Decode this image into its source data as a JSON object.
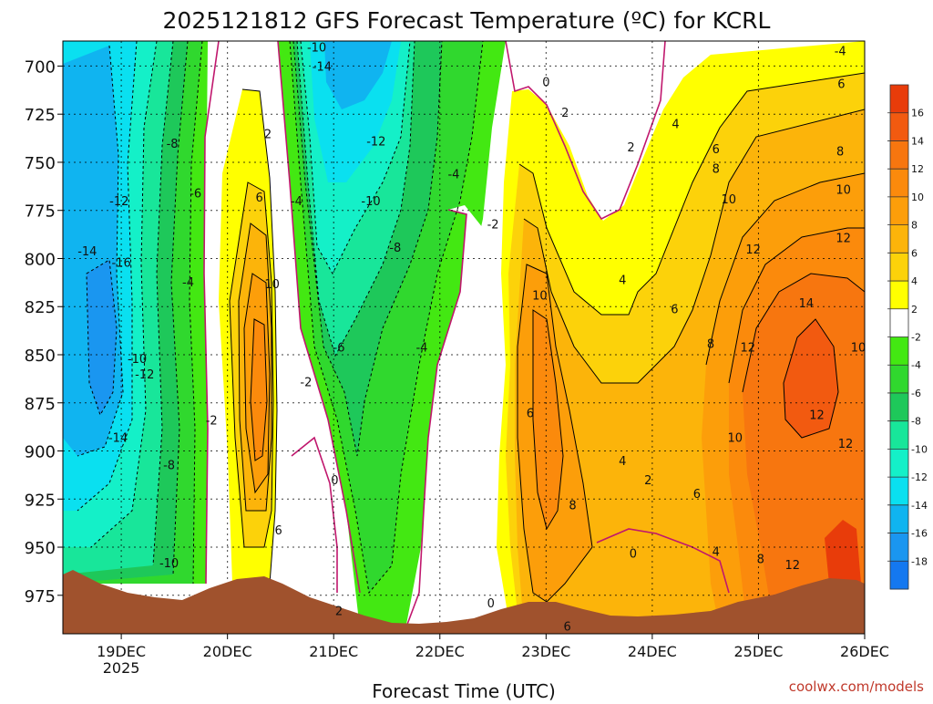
{
  "chart_data": {
    "type": "heatmap",
    "title": "2025121812 GFS Forecast Temperature (ºC) for KCRL",
    "xlabel": "Forecast Time (UTC)",
    "ylabel": "",
    "credit": "coolwx.com/models",
    "x_ticks": [
      "19DEC",
      "20DEC",
      "21DEC",
      "22DEC",
      "23DEC",
      "24DEC",
      "25DEC",
      "26DEC"
    ],
    "x_year": "2025",
    "x_range_days": [
      18.45,
      26.0
    ],
    "y_ticks": [
      700,
      725,
      750,
      775,
      800,
      825,
      850,
      875,
      900,
      925,
      950,
      975
    ],
    "y_range_hpa": [
      687,
      995
    ],
    "colorbar": {
      "labels": [
        "16",
        "14",
        "12",
        "10",
        "8",
        "6",
        "4",
        "2",
        "-2",
        "-4",
        "-6",
        "-8",
        "-10",
        "-12",
        "-14",
        "-16",
        "-18"
      ],
      "colors": [
        "#e83c0a",
        "#f25a10",
        "#f7760f",
        "#fb8a0c",
        "#fc9e0a",
        "#fcb40a",
        "#fcd20a",
        "#ffff00",
        "#ffffff",
        "#43e812",
        "#30d82e",
        "#1ec85a",
        "#18e69a",
        "#14f0c8",
        "#0ae0f0",
        "#10b4f0",
        "#1a96f0",
        "#1478f0"
      ]
    },
    "contour_labels": [
      {
        "label": "-10",
        "day": 20.84,
        "hpa": 690
      },
      {
        "label": "-14",
        "day": 20.89,
        "hpa": 700
      },
      {
        "label": "-8",
        "day": 19.48,
        "hpa": 740
      },
      {
        "label": "-6",
        "day": 19.7,
        "hpa": 766
      },
      {
        "label": "-12",
        "day": 18.98,
        "hpa": 770
      },
      {
        "label": "-14",
        "day": 18.68,
        "hpa": 796
      },
      {
        "label": "-16",
        "day": 19.0,
        "hpa": 802
      },
      {
        "label": "-4",
        "day": 19.63,
        "hpa": 812
      },
      {
        "label": "-10",
        "day": 19.15,
        "hpa": 852
      },
      {
        "label": "-12",
        "day": 19.22,
        "hpa": 860
      },
      {
        "label": "-14",
        "day": 18.97,
        "hpa": 893
      },
      {
        "label": "-8",
        "day": 19.45,
        "hpa": 907
      },
      {
        "label": "-10",
        "day": 19.45,
        "hpa": 958
      },
      {
        "label": "-2",
        "day": 19.85,
        "hpa": 884
      },
      {
        "label": "2",
        "day": 20.38,
        "hpa": 735
      },
      {
        "label": "6",
        "day": 20.3,
        "hpa": 768
      },
      {
        "label": "10",
        "day": 20.42,
        "hpa": 813
      },
      {
        "label": "6",
        "day": 20.48,
        "hpa": 941
      },
      {
        "label": "-4",
        "day": 20.65,
        "hpa": 770
      },
      {
        "label": "-2",
        "day": 20.74,
        "hpa": 864
      },
      {
        "label": "-6",
        "day": 21.05,
        "hpa": 846
      },
      {
        "label": "0",
        "day": 21.01,
        "hpa": 915
      },
      {
        "label": "2",
        "day": 21.05,
        "hpa": 983
      },
      {
        "label": "-12",
        "day": 21.4,
        "hpa": 739
      },
      {
        "label": "-10",
        "day": 21.35,
        "hpa": 770
      },
      {
        "label": "-8",
        "day": 21.58,
        "hpa": 794
      },
      {
        "label": "-4",
        "day": 21.83,
        "hpa": 846
      },
      {
        "label": "-4",
        "day": 22.13,
        "hpa": 756
      },
      {
        "label": "-2",
        "day": 22.5,
        "hpa": 782
      },
      {
        "label": "0",
        "day": 22.48,
        "hpa": 979
      },
      {
        "label": "0",
        "day": 23.0,
        "hpa": 708
      },
      {
        "label": "2",
        "day": 23.18,
        "hpa": 724
      },
      {
        "label": "2",
        "day": 23.8,
        "hpa": 742
      },
      {
        "label": "4",
        "day": 23.72,
        "hpa": 811
      },
      {
        "label": "10",
        "day": 22.94,
        "hpa": 819
      },
      {
        "label": "6",
        "day": 22.85,
        "hpa": 880
      },
      {
        "label": "8",
        "day": 23.25,
        "hpa": 928
      },
      {
        "label": "6",
        "day": 23.2,
        "hpa": 991
      },
      {
        "label": "4",
        "day": 23.72,
        "hpa": 905
      },
      {
        "label": "2",
        "day": 23.96,
        "hpa": 915
      },
      {
        "label": "0",
        "day": 23.82,
        "hpa": 953
      },
      {
        "label": "4",
        "day": 24.22,
        "hpa": 730
      },
      {
        "label": "6",
        "day": 24.6,
        "hpa": 743
      },
      {
        "label": "8",
        "day": 24.6,
        "hpa": 753
      },
      {
        "label": "6",
        "day": 24.21,
        "hpa": 826
      },
      {
        "label": "8",
        "day": 24.55,
        "hpa": 844
      },
      {
        "label": "6",
        "day": 24.42,
        "hpa": 922
      },
      {
        "label": "4",
        "day": 24.6,
        "hpa": 952
      },
      {
        "label": "8",
        "day": 25.02,
        "hpa": 956
      },
      {
        "label": "10",
        "day": 24.72,
        "hpa": 769
      },
      {
        "label": "12",
        "day": 24.95,
        "hpa": 795
      },
      {
        "label": "12",
        "day": 24.9,
        "hpa": 846
      },
      {
        "label": "10",
        "day": 24.78,
        "hpa": 893
      },
      {
        "label": "12",
        "day": 25.32,
        "hpa": 959
      },
      {
        "label": "14",
        "day": 25.45,
        "hpa": 823
      },
      {
        "label": "12",
        "day": 25.55,
        "hpa": 881
      },
      {
        "label": "-4",
        "day": 25.77,
        "hpa": 692
      },
      {
        "label": "6",
        "day": 25.78,
        "hpa": 709
      },
      {
        "label": "8",
        "day": 25.77,
        "hpa": 744
      },
      {
        "label": "10",
        "day": 25.8,
        "hpa": 764
      },
      {
        "label": "12",
        "day": 25.8,
        "hpa": 789
      },
      {
        "label": "10",
        "day": 25.94,
        "hpa": 846
      },
      {
        "label": "12",
        "day": 25.82,
        "hpa": 896
      }
    ]
  }
}
